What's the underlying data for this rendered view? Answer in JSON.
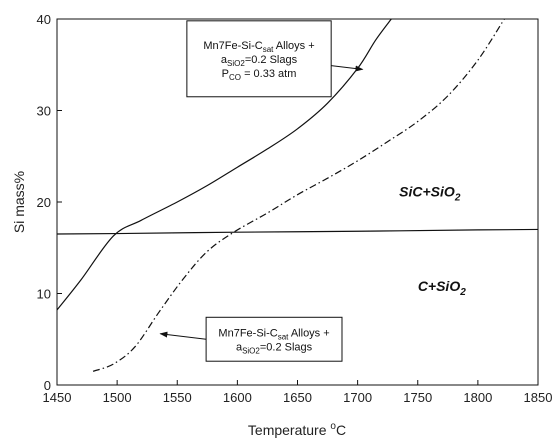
{
  "chart_data": {
    "type": "line",
    "xlabel": {
      "text": "Temperature ",
      "sup": "o",
      "unit": "C"
    },
    "ylabel": "Si mass%",
    "xlim": [
      1450,
      1850
    ],
    "ylim": [
      0,
      40
    ],
    "x_ticks": [
      1450,
      1500,
      1550,
      1600,
      1650,
      1700,
      1750,
      1800,
      1850
    ],
    "y_ticks": [
      0,
      10,
      20,
      30,
      40
    ],
    "grid": false,
    "series": [
      {
        "style": "solid",
        "points": [
          [
            1450,
            8.2
          ],
          [
            1470,
            11.5
          ],
          [
            1497,
            16.3
          ],
          [
            1520,
            18.0
          ],
          [
            1550,
            20.0
          ],
          [
            1575,
            21.8
          ],
          [
            1600,
            23.8
          ],
          [
            1625,
            25.8
          ],
          [
            1650,
            28.0
          ],
          [
            1675,
            30.8
          ],
          [
            1700,
            34.6
          ],
          [
            1715,
            37.7
          ],
          [
            1728,
            40.0
          ]
        ]
      },
      {
        "style": "dashdot",
        "points": [
          [
            1480,
            1.5
          ],
          [
            1497,
            2.3
          ],
          [
            1515,
            4.2
          ],
          [
            1535,
            8.0
          ],
          [
            1555,
            11.6
          ],
          [
            1575,
            14.6
          ],
          [
            1597,
            16.7
          ],
          [
            1625,
            18.8
          ],
          [
            1650,
            20.8
          ],
          [
            1675,
            22.6
          ],
          [
            1700,
            24.5
          ],
          [
            1725,
            26.6
          ],
          [
            1750,
            28.8
          ],
          [
            1775,
            31.6
          ],
          [
            1800,
            35.5
          ],
          [
            1822,
            40.0
          ]
        ]
      },
      {
        "style": "solid",
        "points": [
          [
            1450,
            16.5
          ],
          [
            1500,
            16.55
          ],
          [
            1600,
            16.7
          ],
          [
            1700,
            16.8
          ],
          [
            1800,
            16.95
          ],
          [
            1850,
            17.0
          ]
        ]
      }
    ],
    "region_labels": [
      {
        "main": "SiC+SiO",
        "sub": "2",
        "x": 1760,
        "y": 20.6
      },
      {
        "main": "C+SiO",
        "sub": "2",
        "x": 1770,
        "y": 10.3
      }
    ],
    "annotations": [
      {
        "lines": [
          [
            {
              "t": "Mn7Fe-Si-C"
            },
            {
              "t": "sat",
              "sub": true
            },
            {
              "t": " Alloys +"
            }
          ],
          [
            {
              "t": "a"
            },
            {
              "t": "SiO2",
              "sub": true
            },
            {
              "t": "=0.2 Slags"
            }
          ],
          [
            {
              "t": "P"
            },
            {
              "t": "CO",
              "sub": true
            },
            {
              "t": " = 0.33 atm"
            }
          ]
        ],
        "box": {
          "x0": 1558,
          "x1": 1678,
          "y_top": 39.8,
          "y_bottom": 31.5
        },
        "arrow_from": [
          1678,
          34.9
        ],
        "arrow_to": [
          1704,
          34.5
        ]
      },
      {
        "lines": [
          [
            {
              "t": "Mn7Fe-Si-C"
            },
            {
              "t": "sat",
              "sub": true
            },
            {
              "t": " Alloys +"
            }
          ],
          [
            {
              "t": "a"
            },
            {
              "t": "SiO2",
              "sub": true
            },
            {
              "t": "=0.2 Slags"
            }
          ]
        ],
        "box": {
          "x0": 1574,
          "x1": 1687,
          "y_top": 7.4,
          "y_bottom": 2.6
        },
        "arrow_from": [
          1574,
          5.0
        ],
        "arrow_to": [
          1536,
          5.6
        ]
      }
    ]
  }
}
